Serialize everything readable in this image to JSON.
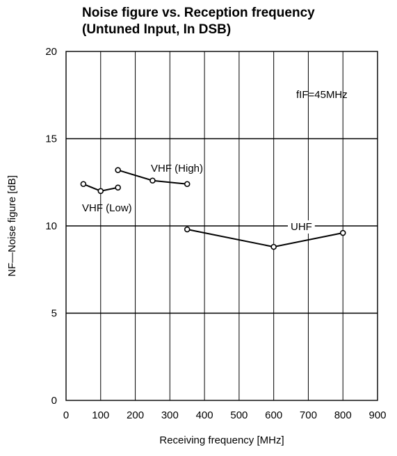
{
  "chart_data": {
    "type": "line",
    "title": "Noise figure vs. Reception frequency",
    "subtitle": "(Untuned Input, In DSB)",
    "xlabel": "Receiving frequency [MHz]",
    "ylabel": "NF—Noise figure [dB]",
    "xlim": [
      0,
      900
    ],
    "ylim": [
      0,
      20
    ],
    "x_ticks": [
      "0",
      "100",
      "200",
      "300",
      "400",
      "500",
      "600",
      "700",
      "800",
      "900"
    ],
    "y_ticks": [
      "0",
      "5",
      "10",
      "15",
      "20"
    ],
    "grid": "horizontal major gridlines every 5 dB; vertical gridlines every 100 MHz",
    "annotation": "fIF=45MHz",
    "series": [
      {
        "name": "VHF (Low)",
        "x": [
          50,
          100,
          150
        ],
        "y": [
          12.4,
          12.0,
          12.2
        ]
      },
      {
        "name": "VHF (High)",
        "x": [
          150,
          250,
          350
        ],
        "y": [
          13.2,
          12.6,
          12.4
        ]
      },
      {
        "name": "UHF",
        "x": [
          350,
          600,
          800
        ],
        "y": [
          9.8,
          8.8,
          9.6
        ]
      }
    ]
  }
}
